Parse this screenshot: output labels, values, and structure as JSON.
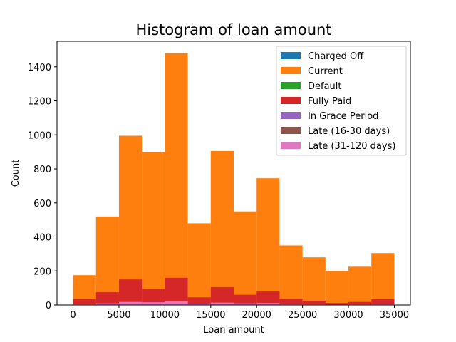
{
  "chart_data": {
    "type": "bar",
    "stacked": false,
    "title": "Histogram of loan amount",
    "xlabel": "Loan amount",
    "ylabel": "Count",
    "xlim": [
      -1750,
      36750
    ],
    "ylim": [
      0,
      1550
    ],
    "xticks": [
      0,
      5000,
      10000,
      15000,
      20000,
      25000,
      30000,
      35000
    ],
    "yticks": [
      0,
      200,
      400,
      600,
      800,
      1000,
      1200,
      1400
    ],
    "bin_edges": [
      0,
      2500,
      5000,
      7500,
      10000,
      12500,
      15000,
      17500,
      20000,
      22500,
      25000,
      27500,
      30000,
      32500,
      35000
    ],
    "legend_position": "top-right",
    "series": [
      {
        "name": "Charged Off",
        "color": "#1f77b4",
        "values": [
          2,
          4,
          8,
          6,
          10,
          3,
          6,
          3,
          5,
          2,
          1,
          1,
          1,
          2
        ]
      },
      {
        "name": "Current",
        "color": "#ff7f0e",
        "values": [
          175,
          520,
          995,
          900,
          1480,
          480,
          905,
          550,
          745,
          350,
          280,
          200,
          225,
          305
        ]
      },
      {
        "name": "Default",
        "color": "#2ca02c",
        "values": [
          0,
          1,
          1,
          1,
          2,
          0,
          1,
          1,
          1,
          0,
          0,
          0,
          0,
          0
        ]
      },
      {
        "name": "Fully Paid",
        "color": "#d62728",
        "values": [
          35,
          75,
          150,
          95,
          160,
          45,
          105,
          60,
          80,
          38,
          25,
          12,
          18,
          35
        ]
      },
      {
        "name": "In Grace Period",
        "color": "#9467bd",
        "values": [
          1,
          3,
          5,
          4,
          7,
          2,
          4,
          3,
          4,
          2,
          1,
          1,
          1,
          2
        ]
      },
      {
        "name": "Late (16-30 days)",
        "color": "#8c564b",
        "values": [
          1,
          3,
          6,
          5,
          8,
          3,
          5,
          3,
          4,
          2,
          1,
          1,
          1,
          2
        ]
      },
      {
        "name": "Late (31-120 days)",
        "color": "#e377c2",
        "values": [
          4,
          10,
          18,
          16,
          22,
          8,
          14,
          10,
          12,
          6,
          4,
          3,
          4,
          6
        ]
      }
    ]
  }
}
